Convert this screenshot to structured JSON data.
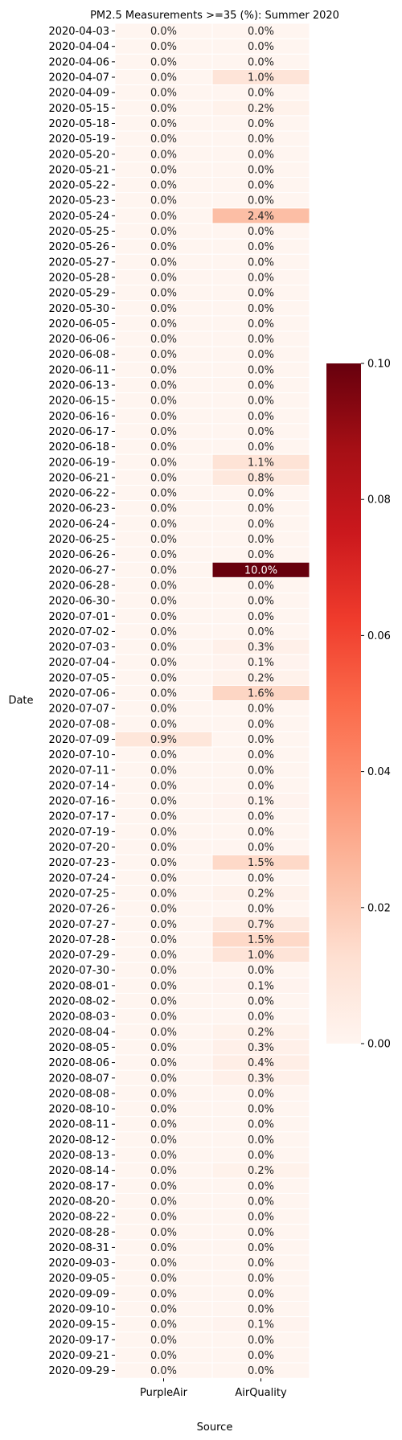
{
  "chart_data": {
    "type": "heatmap",
    "title": "PM2.5 Measurements >=35 (%): Summer 2020",
    "xlabel": "Source",
    "ylabel": "Date",
    "columns": [
      "PurpleAir",
      "AirQuality"
    ],
    "rows": [
      "2020-04-03",
      "2020-04-04",
      "2020-04-06",
      "2020-04-07",
      "2020-04-09",
      "2020-05-15",
      "2020-05-18",
      "2020-05-19",
      "2020-05-20",
      "2020-05-21",
      "2020-05-22",
      "2020-05-23",
      "2020-05-24",
      "2020-05-25",
      "2020-05-26",
      "2020-05-27",
      "2020-05-28",
      "2020-05-29",
      "2020-05-30",
      "2020-06-05",
      "2020-06-06",
      "2020-06-08",
      "2020-06-11",
      "2020-06-13",
      "2020-06-15",
      "2020-06-16",
      "2020-06-17",
      "2020-06-18",
      "2020-06-19",
      "2020-06-21",
      "2020-06-22",
      "2020-06-23",
      "2020-06-24",
      "2020-06-25",
      "2020-06-26",
      "2020-06-27",
      "2020-06-28",
      "2020-06-30",
      "2020-07-01",
      "2020-07-02",
      "2020-07-03",
      "2020-07-04",
      "2020-07-05",
      "2020-07-06",
      "2020-07-07",
      "2020-07-08",
      "2020-07-09",
      "2020-07-10",
      "2020-07-11",
      "2020-07-14",
      "2020-07-16",
      "2020-07-17",
      "2020-07-19",
      "2020-07-20",
      "2020-07-23",
      "2020-07-24",
      "2020-07-25",
      "2020-07-26",
      "2020-07-27",
      "2020-07-28",
      "2020-07-29",
      "2020-07-30",
      "2020-08-01",
      "2020-08-02",
      "2020-08-03",
      "2020-08-04",
      "2020-08-05",
      "2020-08-06",
      "2020-08-07",
      "2020-08-08",
      "2020-08-10",
      "2020-08-11",
      "2020-08-12",
      "2020-08-13",
      "2020-08-14",
      "2020-08-17",
      "2020-08-20",
      "2020-08-22",
      "2020-08-28",
      "2020-08-31",
      "2020-09-03",
      "2020-09-05",
      "2020-09-09",
      "2020-09-10",
      "2020-09-15",
      "2020-09-17",
      "2020-09-21",
      "2020-09-29"
    ],
    "values": [
      [
        0.0,
        0.0
      ],
      [
        0.0,
        0.0
      ],
      [
        0.0,
        0.0
      ],
      [
        0.0,
        0.01
      ],
      [
        0.0,
        0.0
      ],
      [
        0.0,
        0.002
      ],
      [
        0.0,
        0.0
      ],
      [
        0.0,
        0.0
      ],
      [
        0.0,
        0.0
      ],
      [
        0.0,
        0.0
      ],
      [
        0.0,
        0.0
      ],
      [
        0.0,
        0.0
      ],
      [
        0.0,
        0.024
      ],
      [
        0.0,
        0.0
      ],
      [
        0.0,
        0.0
      ],
      [
        0.0,
        0.0
      ],
      [
        0.0,
        0.0
      ],
      [
        0.0,
        0.0
      ],
      [
        0.0,
        0.0
      ],
      [
        0.0,
        0.0
      ],
      [
        0.0,
        0.0
      ],
      [
        0.0,
        0.0
      ],
      [
        0.0,
        0.0
      ],
      [
        0.0,
        0.0
      ],
      [
        0.0,
        0.0
      ],
      [
        0.0,
        0.0
      ],
      [
        0.0,
        0.0
      ],
      [
        0.0,
        0.0
      ],
      [
        0.0,
        0.011
      ],
      [
        0.0,
        0.008
      ],
      [
        0.0,
        0.0
      ],
      [
        0.0,
        0.0
      ],
      [
        0.0,
        0.0
      ],
      [
        0.0,
        0.0
      ],
      [
        0.0,
        0.0
      ],
      [
        0.0,
        0.1
      ],
      [
        0.0,
        0.0
      ],
      [
        0.0,
        0.0
      ],
      [
        0.0,
        0.0
      ],
      [
        0.0,
        0.0
      ],
      [
        0.0,
        0.003
      ],
      [
        0.0,
        0.001
      ],
      [
        0.0,
        0.002
      ],
      [
        0.0,
        0.016
      ],
      [
        0.0,
        0.0
      ],
      [
        0.0,
        0.0
      ],
      [
        0.009,
        0.0
      ],
      [
        0.0,
        0.0
      ],
      [
        0.0,
        0.0
      ],
      [
        0.0,
        0.0
      ],
      [
        0.0,
        0.001
      ],
      [
        0.0,
        0.0
      ],
      [
        0.0,
        0.0
      ],
      [
        0.0,
        0.0
      ],
      [
        0.0,
        0.015
      ],
      [
        0.0,
        0.0
      ],
      [
        0.0,
        0.002
      ],
      [
        0.0,
        0.0
      ],
      [
        0.0,
        0.007
      ],
      [
        0.0,
        0.015
      ],
      [
        0.0,
        0.01
      ],
      [
        0.0,
        0.0
      ],
      [
        0.0,
        0.001
      ],
      [
        0.0,
        0.0
      ],
      [
        0.0,
        0.0
      ],
      [
        0.0,
        0.002
      ],
      [
        0.0,
        0.003
      ],
      [
        0.0,
        0.004
      ],
      [
        0.0,
        0.003
      ],
      [
        0.0,
        0.0
      ],
      [
        0.0,
        0.0
      ],
      [
        0.0,
        0.0
      ],
      [
        0.0,
        0.0
      ],
      [
        0.0,
        0.0
      ],
      [
        0.0,
        0.002
      ],
      [
        0.0,
        0.0
      ],
      [
        0.0,
        0.0
      ],
      [
        0.0,
        0.0
      ],
      [
        0.0,
        0.0
      ],
      [
        0.0,
        0.0
      ],
      [
        0.0,
        0.0
      ],
      [
        0.0,
        0.0
      ],
      [
        0.0,
        0.0
      ],
      [
        0.0,
        0.0
      ],
      [
        0.0,
        0.001
      ],
      [
        0.0,
        0.0
      ],
      [
        0.0,
        0.0
      ],
      [
        0.0,
        0.0
      ]
    ],
    "cell_labels": [
      [
        "0.0%",
        "0.0%"
      ],
      [
        "0.0%",
        "0.0%"
      ],
      [
        "0.0%",
        "0.0%"
      ],
      [
        "0.0%",
        "1.0%"
      ],
      [
        "0.0%",
        "0.0%"
      ],
      [
        "0.0%",
        "0.2%"
      ],
      [
        "0.0%",
        "0.0%"
      ],
      [
        "0.0%",
        "0.0%"
      ],
      [
        "0.0%",
        "0.0%"
      ],
      [
        "0.0%",
        "0.0%"
      ],
      [
        "0.0%",
        "0.0%"
      ],
      [
        "0.0%",
        "0.0%"
      ],
      [
        "0.0%",
        "2.4%"
      ],
      [
        "0.0%",
        "0.0%"
      ],
      [
        "0.0%",
        "0.0%"
      ],
      [
        "0.0%",
        "0.0%"
      ],
      [
        "0.0%",
        "0.0%"
      ],
      [
        "0.0%",
        "0.0%"
      ],
      [
        "0.0%",
        "0.0%"
      ],
      [
        "0.0%",
        "0.0%"
      ],
      [
        "0.0%",
        "0.0%"
      ],
      [
        "0.0%",
        "0.0%"
      ],
      [
        "0.0%",
        "0.0%"
      ],
      [
        "0.0%",
        "0.0%"
      ],
      [
        "0.0%",
        "0.0%"
      ],
      [
        "0.0%",
        "0.0%"
      ],
      [
        "0.0%",
        "0.0%"
      ],
      [
        "0.0%",
        "0.0%"
      ],
      [
        "0.0%",
        "1.1%"
      ],
      [
        "0.0%",
        "0.8%"
      ],
      [
        "0.0%",
        "0.0%"
      ],
      [
        "0.0%",
        "0.0%"
      ],
      [
        "0.0%",
        "0.0%"
      ],
      [
        "0.0%",
        "0.0%"
      ],
      [
        "0.0%",
        "0.0%"
      ],
      [
        "0.0%",
        "10.0%"
      ],
      [
        "0.0%",
        "0.0%"
      ],
      [
        "0.0%",
        "0.0%"
      ],
      [
        "0.0%",
        "0.0%"
      ],
      [
        "0.0%",
        "0.0%"
      ],
      [
        "0.0%",
        "0.3%"
      ],
      [
        "0.0%",
        "0.1%"
      ],
      [
        "0.0%",
        "0.2%"
      ],
      [
        "0.0%",
        "1.6%"
      ],
      [
        "0.0%",
        "0.0%"
      ],
      [
        "0.0%",
        "0.0%"
      ],
      [
        "0.9%",
        "0.0%"
      ],
      [
        "0.0%",
        "0.0%"
      ],
      [
        "0.0%",
        "0.0%"
      ],
      [
        "0.0%",
        "0.0%"
      ],
      [
        "0.0%",
        "0.1%"
      ],
      [
        "0.0%",
        "0.0%"
      ],
      [
        "0.0%",
        "0.0%"
      ],
      [
        "0.0%",
        "0.0%"
      ],
      [
        "0.0%",
        "1.5%"
      ],
      [
        "0.0%",
        "0.0%"
      ],
      [
        "0.0%",
        "0.2%"
      ],
      [
        "0.0%",
        "0.0%"
      ],
      [
        "0.0%",
        "0.7%"
      ],
      [
        "0.0%",
        "1.5%"
      ],
      [
        "0.0%",
        "1.0%"
      ],
      [
        "0.0%",
        "0.0%"
      ],
      [
        "0.0%",
        "0.1%"
      ],
      [
        "0.0%",
        "0.0%"
      ],
      [
        "0.0%",
        "0.0%"
      ],
      [
        "0.0%",
        "0.2%"
      ],
      [
        "0.0%",
        "0.3%"
      ],
      [
        "0.0%",
        "0.4%"
      ],
      [
        "0.0%",
        "0.3%"
      ],
      [
        "0.0%",
        "0.0%"
      ],
      [
        "0.0%",
        "0.0%"
      ],
      [
        "0.0%",
        "0.0%"
      ],
      [
        "0.0%",
        "0.0%"
      ],
      [
        "0.0%",
        "0.0%"
      ],
      [
        "0.0%",
        "0.2%"
      ],
      [
        "0.0%",
        "0.0%"
      ],
      [
        "0.0%",
        "0.0%"
      ],
      [
        "0.0%",
        "0.0%"
      ],
      [
        "0.0%",
        "0.0%"
      ],
      [
        "0.0%",
        "0.0%"
      ],
      [
        "0.0%",
        "0.0%"
      ],
      [
        "0.0%",
        "0.0%"
      ],
      [
        "0.0%",
        "0.0%"
      ],
      [
        "0.0%",
        "0.0%"
      ],
      [
        "0.0%",
        "0.1%"
      ],
      [
        "0.0%",
        "0.0%"
      ],
      [
        "0.0%",
        "0.0%"
      ],
      [
        "0.0%",
        "0.0%"
      ]
    ],
    "colorbar": {
      "range": [
        0.0,
        0.1
      ],
      "ticks": [
        "0.00",
        "0.02",
        "0.04",
        "0.06",
        "0.08",
        "0.10"
      ],
      "colormap": "Reds",
      "stops": [
        "#fff5f0",
        "#fee0d2",
        "#fcbba1",
        "#fc9272",
        "#fb6a4a",
        "#ef3b2c",
        "#cb181d",
        "#a50f15",
        "#67000d"
      ]
    },
    "grid": false
  }
}
